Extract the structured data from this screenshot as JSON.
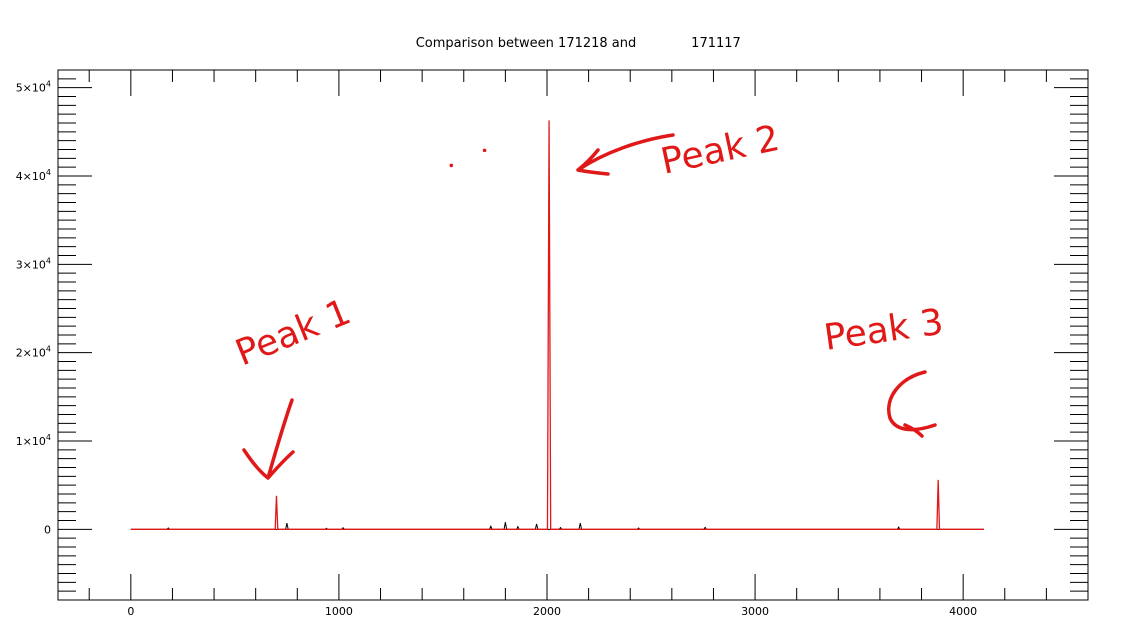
{
  "chart_data": {
    "type": "line",
    "title": "Comparison between 171218 and",
    "title_suffix": "171117",
    "xlabel": "",
    "ylabel": "",
    "xlim": [
      -350,
      4600
    ],
    "ylim": [
      -8000,
      52000
    ],
    "x_ticks": [
      {
        "value": 0,
        "label": "0"
      },
      {
        "value": 1000,
        "label": "1000"
      },
      {
        "value": 2000,
        "label": "2000"
      },
      {
        "value": 3000,
        "label": "3000"
      },
      {
        "value": 4000,
        "label": "4000"
      }
    ],
    "y_ticks": [
      {
        "value": 0,
        "mant": "0",
        "exp": ""
      },
      {
        "value": 10000,
        "mant": "1×10",
        "exp": "4"
      },
      {
        "value": 20000,
        "mant": "2×10",
        "exp": "4"
      },
      {
        "value": 30000,
        "mant": "3×10",
        "exp": "4"
      },
      {
        "value": 40000,
        "mant": "4×10",
        "exp": "4"
      },
      {
        "value": 50000,
        "mant": "5×10",
        "exp": "4"
      }
    ],
    "grid": false,
    "series": [
      {
        "color": "#000000",
        "baseline_range": [
          0,
          4100
        ],
        "baseline_value": 0,
        "peaks": [
          [
            180,
            150
          ],
          [
            750,
            700
          ],
          [
            940,
            120
          ],
          [
            1020,
            180
          ],
          [
            1730,
            350
          ],
          [
            1800,
            800
          ],
          [
            1860,
            300
          ],
          [
            1950,
            600
          ],
          [
            2065,
            200
          ],
          [
            2160,
            700
          ],
          [
            2440,
            150
          ],
          [
            2760,
            220
          ],
          [
            3690,
            250
          ]
        ]
      },
      {
        "color": "#e01818",
        "baseline_range": [
          0,
          4100
        ],
        "baseline_value": 0,
        "peaks": [
          [
            700,
            3800
          ],
          [
            2010,
            46300
          ],
          [
            3880,
            5600
          ]
        ],
        "dots": [
          [
            1540,
            41200
          ],
          [
            1700,
            42900
          ]
        ]
      }
    ],
    "annotations": [
      {
        "text": "Peak 1",
        "color": "#e01818"
      },
      {
        "text": "Peak 2",
        "color": "#e01818"
      },
      {
        "text": "Peak 3",
        "color": "#e01818"
      }
    ]
  }
}
